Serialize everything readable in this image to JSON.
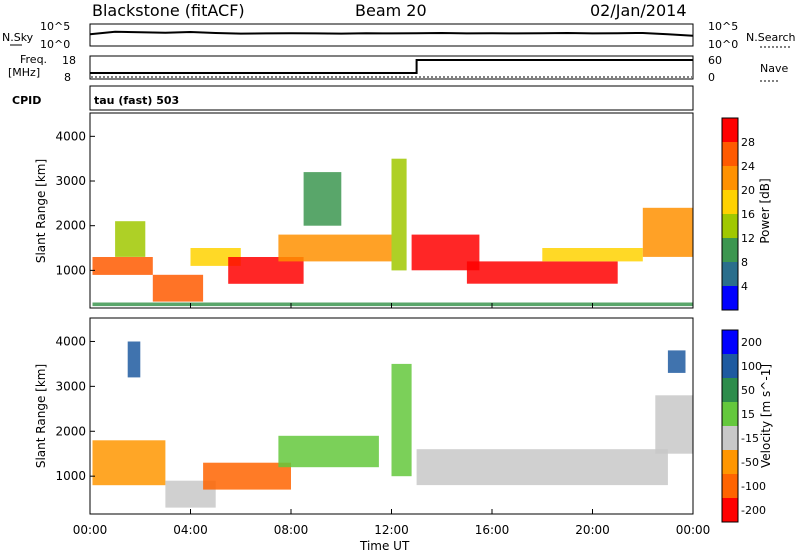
{
  "header": {
    "title_left": "Blackstone (fitACF)",
    "title_center": "Beam 20",
    "title_right": "02/Jan/2014"
  },
  "noise_panel": {
    "left_label": "N.Sky",
    "right_label": "N.Search",
    "left_ticks": [
      "10^5",
      "10^0"
    ],
    "right_ticks": [
      "10^5",
      "10^0"
    ]
  },
  "freq_panel": {
    "left_label_top": "Freq.",
    "left_label_unit": "[MHz]",
    "left_ticks": [
      "18",
      "8"
    ],
    "right_ticks": [
      "60",
      "0"
    ],
    "right_label": "Nave",
    "step_hour": 13.0
  },
  "cpid": {
    "label": "CPID",
    "text": "tau (fast) 503"
  },
  "power_panel": {
    "ylabel": "Slant Range [km]",
    "colorbar_label": "Power [dB]",
    "colorbar_ticks": [
      "28",
      "24",
      "20",
      "16",
      "12",
      "8",
      "4"
    ],
    "colors": [
      "#ff0000",
      "#ff5a00",
      "#ff9100",
      "#ffd200",
      "#a0c800",
      "#3c9650",
      "#2a6e8c",
      "#0000ff"
    ]
  },
  "velocity_panel": {
    "ylabel": "Slant Range [km]",
    "colorbar_label": "Velocity [m s^-1]",
    "colorbar_ticks": [
      "200",
      "100",
      "50",
      "15",
      "-15",
      "-50",
      "-100",
      "-200"
    ],
    "colors": [
      "#0000ff",
      "#1e5aa0",
      "#2d8c4b",
      "#64c83c",
      "#c8c8c8",
      "#ff9600",
      "#ff6400",
      "#ff0000"
    ]
  },
  "x_axis": {
    "label": "Time UT",
    "ticks": [
      "00:00",
      "04:00",
      "08:00",
      "12:00",
      "16:00",
      "20:00",
      "00:00"
    ]
  },
  "chart_data": [
    {
      "type": "line",
      "title": "N.Sky / N.Search",
      "x_range": [
        0,
        24
      ],
      "y_scale": "log",
      "y_range": [
        1,
        100000
      ],
      "series": [
        {
          "name": "N.Sky",
          "x": [
            0,
            1,
            2,
            3,
            4,
            5,
            6,
            7,
            8,
            9,
            10,
            11,
            12,
            13,
            14,
            15,
            16,
            17,
            18,
            19,
            20,
            21,
            22,
            23,
            24
          ],
          "y": [
            500,
            2000,
            1500,
            1200,
            1800,
            1000,
            700,
            800,
            900,
            800,
            700,
            900,
            800,
            900,
            1000,
            800,
            900,
            800,
            900,
            1000,
            800,
            900,
            1000,
            500,
            200
          ]
        }
      ]
    },
    {
      "type": "line",
      "title": "Freq. / Nave",
      "x_range": [
        0,
        24
      ],
      "series": [
        {
          "name": "Freq.",
          "x": [
            0,
            13,
            13,
            24
          ],
          "y": [
            10.5,
            10.5,
            17,
            17
          ]
        },
        {
          "name": "Nave",
          "x": [
            0,
            24
          ],
          "y": [
            0,
            0
          ]
        }
      ]
    },
    {
      "type": "heatmap",
      "title": "Power",
      "x_range": [
        0,
        24
      ],
      "y_range": [
        180,
        4500
      ],
      "value_range": [
        0,
        30
      ],
      "regions": [
        {
          "t": [
            0.1,
            2.5
          ],
          "r": [
            900,
            1300
          ],
          "v": 24
        },
        {
          "t": [
            1.0,
            2.2
          ],
          "r": [
            1300,
            2100
          ],
          "v": 14
        },
        {
          "t": [
            2.5,
            4.5
          ],
          "r": [
            300,
            900
          ],
          "v": 24
        },
        {
          "t": [
            4.0,
            6.0
          ],
          "r": [
            1100,
            1500
          ],
          "v": 18
        },
        {
          "t": [
            5.5,
            8.5
          ],
          "r": [
            700,
            1300
          ],
          "v": 27
        },
        {
          "t": [
            7.5,
            12.0
          ],
          "r": [
            1200,
            1800
          ],
          "v": 22
        },
        {
          "t": [
            8.5,
            10.0
          ],
          "r": [
            2000,
            3200
          ],
          "v": 8
        },
        {
          "t": [
            12.0,
            12.6
          ],
          "r": [
            1000,
            3500
          ],
          "v": 14
        },
        {
          "t": [
            12.8,
            15.5
          ],
          "r": [
            1000,
            1800
          ],
          "v": 27
        },
        {
          "t": [
            15.0,
            21.0
          ],
          "r": [
            700,
            1200
          ],
          "v": 27
        },
        {
          "t": [
            18.0,
            22.0
          ],
          "r": [
            1200,
            1500
          ],
          "v": 16
        },
        {
          "t": [
            22.0,
            24.0
          ],
          "r": [
            1300,
            2400
          ],
          "v": 22
        },
        {
          "t": [
            0.1,
            24.0
          ],
          "r": [
            200,
            280
          ],
          "v": 10
        }
      ]
    },
    {
      "type": "heatmap",
      "title": "Velocity",
      "x_range": [
        0,
        24
      ],
      "y_range": [
        180,
        4500
      ],
      "value_range": [
        -200,
        200
      ],
      "regions": [
        {
          "t": [
            0.1,
            3.0
          ],
          "r": [
            800,
            1800
          ],
          "v": -40
        },
        {
          "t": [
            1.5,
            2.0
          ],
          "r": [
            3200,
            4000
          ],
          "v": 150
        },
        {
          "t": [
            3.0,
            5.0
          ],
          "r": [
            300,
            900
          ],
          "v": 0
        },
        {
          "t": [
            4.5,
            8.0
          ],
          "r": [
            700,
            1300
          ],
          "v": -60
        },
        {
          "t": [
            7.5,
            11.5
          ],
          "r": [
            1200,
            1900
          ],
          "v": 40
        },
        {
          "t": [
            12.0,
            12.8
          ],
          "r": [
            1000,
            3500
          ],
          "v": 30
        },
        {
          "t": [
            13.0,
            23.0
          ],
          "r": [
            800,
            1600
          ],
          "v": 0
        },
        {
          "t": [
            22.5,
            24.0
          ],
          "r": [
            1500,
            2800
          ],
          "v": 0
        },
        {
          "t": [
            23.0,
            23.7
          ],
          "r": [
            3300,
            3800
          ],
          "v": 150
        }
      ]
    }
  ]
}
